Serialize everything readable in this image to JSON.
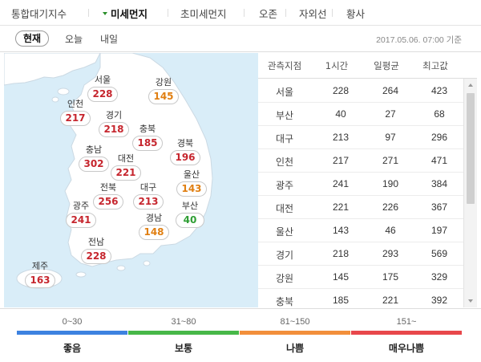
{
  "top_tabs": [
    {
      "label": "통합대기지수",
      "active": false
    },
    {
      "label": "미세먼지",
      "active": true
    },
    {
      "label": "초미세먼지",
      "active": false
    },
    {
      "label": "오존",
      "active": false
    },
    {
      "label": "자외선",
      "active": false
    },
    {
      "label": "황사",
      "active": false
    }
  ],
  "sub_tabs": {
    "current": "현재",
    "today": "오늘",
    "tomorrow": "내일"
  },
  "timestamp": "2017.05.06. 07:00 기준",
  "map_regions": [
    {
      "name": "서울",
      "value": "228",
      "level": "bad"
    },
    {
      "name": "강원",
      "value": "145",
      "level": "normal"
    },
    {
      "name": "인천",
      "value": "217",
      "level": "bad"
    },
    {
      "name": "경기",
      "value": "218",
      "level": "bad"
    },
    {
      "name": "충북",
      "value": "185",
      "level": "bad"
    },
    {
      "name": "충남",
      "value": "302",
      "level": "bad"
    },
    {
      "name": "대전",
      "value": "221",
      "level": "bad"
    },
    {
      "name": "경북",
      "value": "196",
      "level": "bad"
    },
    {
      "name": "울산",
      "value": "143",
      "level": "normal"
    },
    {
      "name": "전북",
      "value": "256",
      "level": "bad"
    },
    {
      "name": "대구",
      "value": "213",
      "level": "bad"
    },
    {
      "name": "부산",
      "value": "40",
      "level": "good"
    },
    {
      "name": "광주",
      "value": "241",
      "level": "bad"
    },
    {
      "name": "경남",
      "value": "148",
      "level": "normal"
    },
    {
      "name": "전남",
      "value": "228",
      "level": "bad"
    },
    {
      "name": "제주",
      "value": "163",
      "level": "bad"
    }
  ],
  "table": {
    "headers": [
      "관측지점",
      "1시간",
      "일평균",
      "최고값"
    ],
    "rows": [
      [
        "서울",
        "228",
        "264",
        "423"
      ],
      [
        "부산",
        "40",
        "27",
        "68"
      ],
      [
        "대구",
        "213",
        "97",
        "296"
      ],
      [
        "인천",
        "217",
        "271",
        "471"
      ],
      [
        "광주",
        "241",
        "190",
        "384"
      ],
      [
        "대전",
        "221",
        "226",
        "367"
      ],
      [
        "울산",
        "143",
        "46",
        "197"
      ],
      [
        "경기",
        "218",
        "293",
        "569"
      ],
      [
        "강원",
        "145",
        "175",
        "329"
      ],
      [
        "충북",
        "185",
        "221",
        "392"
      ]
    ]
  },
  "legend": [
    {
      "range": "0~30",
      "label": "좋음",
      "color": "#3d82e0"
    },
    {
      "range": "31~80",
      "label": "보통",
      "color": "#47b848"
    },
    {
      "range": "81~150",
      "label": "나쁨",
      "color": "#f28f3b"
    },
    {
      "range": "151~",
      "label": "매우나쁨",
      "color": "#e8474b"
    }
  ],
  "colors": {
    "bad": "#c6262e",
    "normal": "#e07f12",
    "good": "#2f9e34",
    "sea": "#d9edf8",
    "land": "#ffffff"
  }
}
